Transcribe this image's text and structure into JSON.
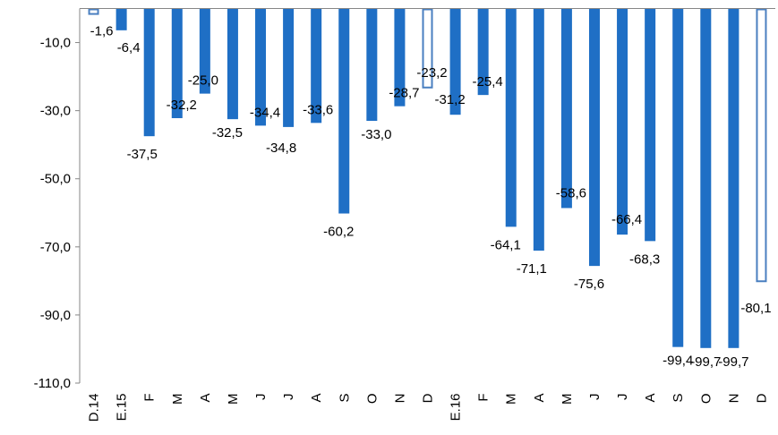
{
  "chart_data": {
    "type": "bar",
    "categories": [
      "D.14",
      "E.15",
      "F",
      "M",
      "A",
      "M",
      "J",
      "J",
      "A",
      "S",
      "O",
      "N",
      "D",
      "E.16",
      "F",
      "M",
      "A",
      "M",
      "J",
      "J",
      "A",
      "S",
      "O",
      "N",
      "D"
    ],
    "values": [
      -1.6,
      -6.4,
      -37.5,
      -32.2,
      -25.0,
      -32.5,
      -34.4,
      -34.8,
      -33.6,
      -60.2,
      -33.0,
      -28.7,
      -23.2,
      -31.2,
      -25.4,
      -64.1,
      -71.1,
      -58.6,
      -75.6,
      -66.4,
      -68.3,
      -99.4,
      -99.7,
      -99.7,
      -80.1
    ],
    "data_labels": [
      "-1,6",
      "-6,4",
      "-37,5",
      "-32,2",
      "-25,0",
      "-32,5",
      "-34,4",
      "-34,8",
      "-33,6",
      "-60,2",
      "-33,0",
      "-28,7",
      "-23,2",
      "-31,2",
      "-25,4",
      "-64,1",
      "-71,1",
      "-58,6",
      "-75,6",
      "-66,4",
      "-68,3",
      "-99,4",
      "-99,7",
      "-99,7",
      "-80,1"
    ],
    "hollow": [
      true,
      false,
      false,
      false,
      false,
      false,
      false,
      false,
      false,
      false,
      false,
      false,
      true,
      false,
      false,
      false,
      false,
      false,
      false,
      false,
      false,
      false,
      false,
      false,
      true
    ],
    "ylim": [
      -110,
      2
    ],
    "yticks": [
      -10,
      -30,
      -50,
      -70,
      -90,
      -110
    ],
    "ytick_labels": [
      "-10,0",
      "-30,0",
      "-50,0",
      "-70,0",
      "-90,0",
      "-110,0"
    ],
    "bar_color": "#1F6FC5",
    "bar_edge": "#4A7FC0",
    "axis_color": "#868686"
  }
}
